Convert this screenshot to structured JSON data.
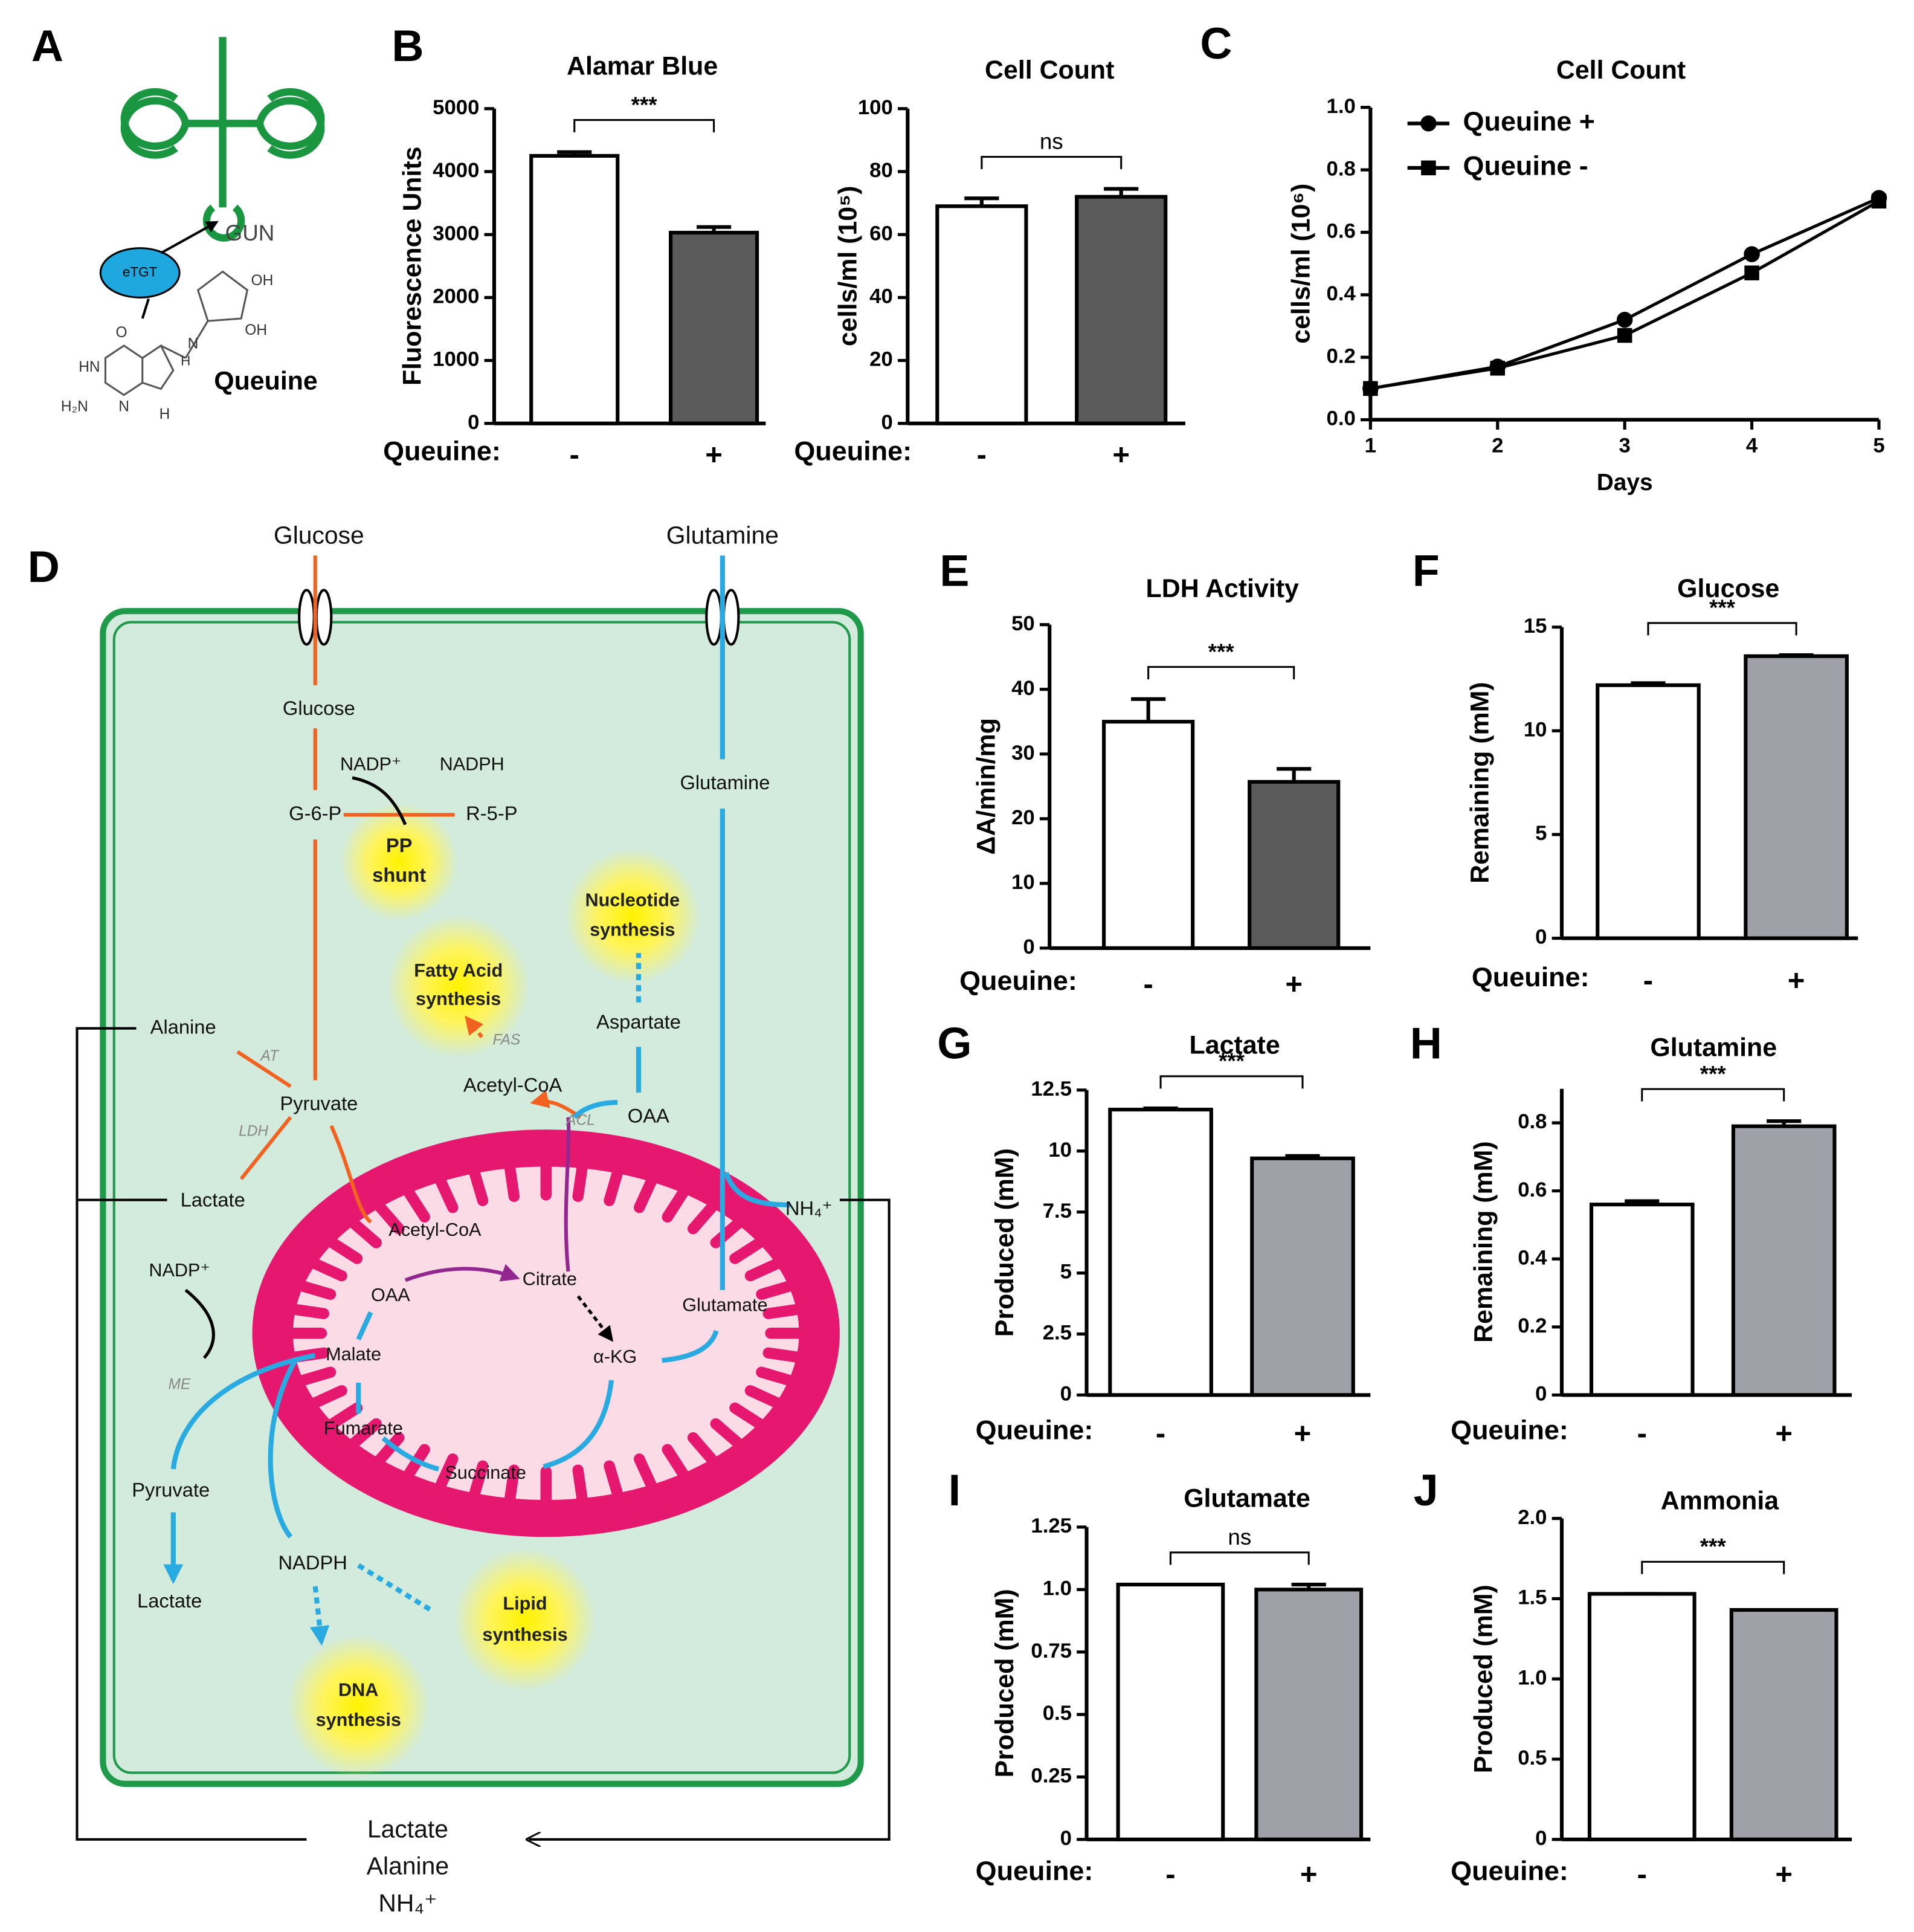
{
  "panel_letters": [
    "A",
    "B",
    "C",
    "D",
    "E",
    "F",
    "G",
    "H",
    "I",
    "J"
  ],
  "panel_a": {
    "labels": [
      "GUN",
      "eTGT",
      "Queuine",
      "OH",
      "OH",
      "O",
      "HN",
      "H₂N",
      "N",
      "N",
      "H",
      "H"
    ]
  },
  "diagram": {
    "labels": [
      "Glucose",
      "Glutamine",
      "Glucose",
      "NADP⁺",
      "NADPH",
      "G-6-P",
      "R-5-P",
      "PP",
      "shunt",
      "Glutamine",
      "Nucleotide",
      "synthesis",
      "Fatty Acid",
      "synthesis",
      "Alanine",
      "AT",
      "Aspartate",
      "FAS",
      "Pyruvate",
      "Acetyl-CoA",
      "ACL",
      "OAA",
      "LDH",
      "Lactate",
      "NH₄⁺",
      "Acetyl-CoA",
      "NADP⁺",
      "OAA",
      "Citrate",
      "Glutamate",
      "Malate",
      "α-KG",
      "ME",
      "Fumarate",
      "Succinate",
      "Pyruvate",
      "NADPH",
      "Lipid",
      "synthesis",
      "Lactate",
      "DNA",
      "synthesis",
      "Lactate",
      "Alanine",
      "NH₄⁺"
    ]
  },
  "chart_data": [
    {
      "type": "bar",
      "title": "Alamar Blue",
      "ylabel": "Fluorescence Units",
      "xlabel": "Queuine:",
      "categories": [
        "-",
        "+"
      ],
      "values": [
        4250,
        3030
      ],
      "errors": [
        60,
        90
      ],
      "colors": [
        "#ffffff",
        "#5a5a5a"
      ],
      "ylim": [
        0,
        5000
      ],
      "yticks": [
        0,
        1000,
        2000,
        3000,
        4000,
        5000
      ],
      "significance": "***"
    },
    {
      "type": "bar",
      "title": "Cell Count",
      "ylabel": "cells/ml (10⁵)",
      "xlabel": "Queuine:",
      "categories": [
        "-",
        "+"
      ],
      "values": [
        69,
        72
      ],
      "errors": [
        2.5,
        2.5
      ],
      "colors": [
        "#ffffff",
        "#5a5a5a"
      ],
      "ylim": [
        0,
        100
      ],
      "yticks": [
        0,
        20,
        40,
        60,
        80,
        100
      ],
      "significance": "ns"
    },
    {
      "type": "line",
      "title": "Cell Count",
      "xlabel": "Days",
      "ylabel": "cells/ml (10⁶)",
      "x": [
        1,
        2,
        3,
        4,
        5
      ],
      "xlim": [
        1,
        5
      ],
      "xticks": [
        1,
        2,
        3,
        4,
        5
      ],
      "ylim": [
        0,
        1
      ],
      "yticks": [
        {
          "value": 0,
          "label": "0.0"
        },
        0.2,
        0.4,
        0.6,
        0.8,
        {
          "value": 1,
          "label": "1.0"
        }
      ],
      "legend": "upper left",
      "series": [
        {
          "name": "Queuine +",
          "color": "#000000",
          "marker": "circle",
          "values": [
            0.1,
            0.17,
            0.32,
            0.53,
            0.71
          ],
          "errors": [
            0.01,
            0.01,
            0.02,
            0.02,
            0.01
          ]
        },
        {
          "name": "Queuine -",
          "color": "#000000",
          "marker": "square",
          "values": [
            0.1,
            0.165,
            0.27,
            0.47,
            0.7
          ],
          "errors": [
            0.01,
            0.01,
            0.02,
            0.02,
            0.01
          ]
        }
      ]
    },
    {
      "type": "bar",
      "title": "LDH Activity",
      "ylabel": "ΔA/min/mg",
      "xlabel": "Queuine:",
      "categories": [
        "-",
        "+"
      ],
      "values": [
        35,
        25.7
      ],
      "errors": [
        3.5,
        2
      ],
      "colors": [
        "#ffffff",
        "#5a5a5a"
      ],
      "ylim": [
        0,
        50
      ],
      "yticks": [
        0,
        10,
        20,
        30,
        40,
        50
      ],
      "significance": "***"
    },
    {
      "type": "bar",
      "title": "Glucose",
      "ylabel": "Remaining (mM)",
      "xlabel": "Queuine:",
      "categories": [
        "-",
        "+"
      ],
      "values": [
        12.2,
        13.6
      ],
      "errors": [
        0.1,
        0.05
      ],
      "colors": [
        "#ffffff",
        "#a0a0a8"
      ],
      "ylim": [
        0,
        15
      ],
      "yticks": [
        0,
        5,
        10,
        15
      ],
      "significance": "***"
    },
    {
      "type": "bar",
      "title": "Lactate",
      "ylabel": "Produced (mM)",
      "xlabel": "Queuine:",
      "categories": [
        "-",
        "+"
      ],
      "values": [
        11.7,
        9.7
      ],
      "errors": [
        0.05,
        0.1
      ],
      "colors": [
        "#ffffff",
        "#a0a0a8"
      ],
      "ylim": [
        0,
        12.5
      ],
      "yticks": [
        0,
        2.5,
        5,
        7.5,
        10,
        12.5
      ],
      "significance": "***"
    },
    {
      "type": "bar",
      "title": "Glutamine",
      "ylabel": "Remaining (mM)",
      "xlabel": "Queuine:",
      "categories": [
        "-",
        "+"
      ],
      "values": [
        0.56,
        0.79
      ],
      "errors": [
        0.01,
        0.015
      ],
      "colors": [
        "#ffffff",
        "#a0a0a8"
      ],
      "ylim": [
        0,
        0.9
      ],
      "yticks": [
        0,
        0.2,
        0.4,
        0.6,
        0.8
      ],
      "significance": "***"
    },
    {
      "type": "bar",
      "title": "Glutamate",
      "ylabel": "Produced (mM)",
      "xlabel": "Queuine:",
      "categories": [
        "-",
        "+"
      ],
      "values": [
        1.02,
        1.0
      ],
      "errors": [
        0,
        0.02
      ],
      "colors": [
        "#ffffff",
        "#a0a0a8"
      ],
      "ylim": [
        0,
        1.25
      ],
      "yticks": [
        0,
        0.25,
        0.5,
        0.75,
        {
          "value": 1,
          "label": "1.0"
        },
        1.25
      ],
      "significance": "ns"
    },
    {
      "type": "bar",
      "title": "Ammonia",
      "ylabel": "Produced (mM)",
      "xlabel": "Queuine:",
      "categories": [
        "-",
        "+"
      ],
      "values": [
        1.53,
        1.43
      ],
      "errors": [
        0,
        0
      ],
      "colors": [
        "#ffffff",
        "#a0a0a8"
      ],
      "ylim": [
        0,
        2
      ],
      "yticks": [
        0,
        0.5,
        {
          "value": 1,
          "label": "1.0"
        },
        1.5,
        {
          "value": 2,
          "label": "2.0"
        }
      ],
      "significance": "***"
    }
  ]
}
